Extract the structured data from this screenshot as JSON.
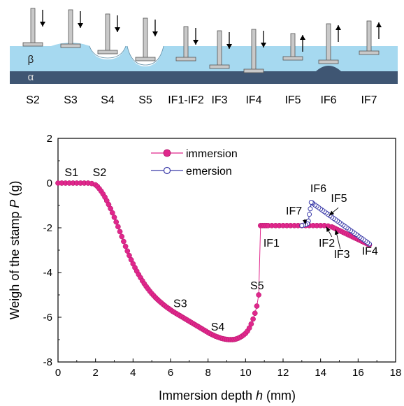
{
  "schematic": {
    "panel_labels": [
      "S2",
      "S3",
      "S4",
      "S5",
      "IF1-IF2",
      "IF3",
      "IF4",
      "IF5",
      "IF6",
      "IF7"
    ],
    "layer_labels": {
      "top": "β",
      "bottom": "α"
    },
    "arrow_directions": [
      "down",
      "down",
      "down",
      "down",
      "down",
      "down",
      "down",
      "up",
      "up",
      "up"
    ],
    "colors": {
      "beta_layer": "#a6d9f0",
      "alpha_layer": "#3f5673",
      "stamp": "#c9c9c9"
    }
  },
  "chart_data": {
    "type": "scatter",
    "xlabel_main": "Immersion depth ",
    "xlabel_var": "h",
    "xlabel_unit": " (mm)",
    "ylabel_main": "Weigh of the stamp ",
    "ylabel_var": "P",
    "ylabel_unit": " (g)",
    "xlim": [
      0,
      18
    ],
    "ylim": [
      -8,
      2
    ],
    "xticks": [
      0,
      2,
      4,
      6,
      8,
      10,
      12,
      14,
      16,
      18
    ],
    "yticks": [
      -8,
      -6,
      -4,
      -2,
      0,
      2
    ],
    "grid": false,
    "legend_position": "top-center",
    "series": [
      {
        "name": "immersion",
        "marker": "filled-circle",
        "color": "#e0278c",
        "x": [
          0.0,
          0.2,
          0.4,
          0.6,
          0.8,
          1.0,
          1.2,
          1.4,
          1.6,
          1.8,
          2.0,
          2.1,
          2.2,
          2.3,
          2.4,
          2.5,
          2.6,
          2.7,
          2.8,
          2.9,
          3.0,
          3.1,
          3.2,
          3.3,
          3.4,
          3.5,
          3.6,
          3.7,
          3.8,
          3.9,
          4.0,
          4.1,
          4.2,
          4.3,
          4.4,
          4.5,
          4.6,
          4.7,
          4.8,
          4.9,
          5.0,
          5.1,
          5.2,
          5.3,
          5.4,
          5.5,
          5.6,
          5.7,
          5.8,
          5.9,
          6.0,
          6.1,
          6.2,
          6.3,
          6.4,
          6.5,
          6.6,
          6.7,
          6.8,
          6.9,
          7.0,
          7.1,
          7.2,
          7.3,
          7.4,
          7.5,
          7.6,
          7.7,
          7.8,
          7.9,
          8.0,
          8.1,
          8.2,
          8.3,
          8.4,
          8.5,
          8.6,
          8.7,
          8.8,
          8.9,
          9.0,
          9.1,
          9.2,
          9.3,
          9.4,
          9.5,
          9.6,
          9.7,
          9.8,
          9.9,
          10.0,
          10.1,
          10.2,
          10.3,
          10.4,
          10.5,
          10.6,
          10.7,
          10.8,
          10.9,
          11.0,
          11.1,
          11.2,
          11.4,
          11.6,
          11.8,
          12.0,
          12.2,
          12.4,
          12.6,
          12.8,
          13.0,
          13.2,
          13.4,
          13.6,
          13.8,
          14.0,
          14.2,
          14.4,
          14.6,
          14.7,
          14.8,
          14.9,
          15.0,
          15.1,
          15.2,
          15.3,
          15.4,
          15.5,
          15.6,
          15.7,
          15.8,
          15.9,
          16.0,
          16.1,
          16.2,
          16.3,
          16.4,
          16.5,
          16.6
        ],
        "y": [
          0.0,
          0.0,
          0.0,
          0.0,
          0.0,
          0.0,
          0.0,
          0.0,
          0.0,
          -0.02,
          -0.08,
          -0.15,
          -0.25,
          -0.36,
          -0.49,
          -0.63,
          -0.79,
          -0.96,
          -1.14,
          -1.33,
          -1.53,
          -1.74,
          -1.95,
          -2.17,
          -2.39,
          -2.61,
          -2.83,
          -3.04,
          -3.24,
          -3.43,
          -3.61,
          -3.78,
          -3.94,
          -4.09,
          -4.23,
          -4.37,
          -4.5,
          -4.62,
          -4.73,
          -4.84,
          -4.94,
          -5.03,
          -5.12,
          -5.2,
          -5.28,
          -5.35,
          -5.42,
          -5.49,
          -5.55,
          -5.61,
          -5.67,
          -5.73,
          -5.78,
          -5.83,
          -5.88,
          -5.93,
          -5.98,
          -6.03,
          -6.08,
          -6.13,
          -6.18,
          -6.23,
          -6.28,
          -6.33,
          -6.38,
          -6.43,
          -6.48,
          -6.53,
          -6.58,
          -6.63,
          -6.68,
          -6.73,
          -6.77,
          -6.81,
          -6.85,
          -6.88,
          -6.91,
          -6.94,
          -6.96,
          -6.98,
          -6.99,
          -7.0,
          -7.0,
          -7.0,
          -6.99,
          -6.97,
          -6.94,
          -6.9,
          -6.85,
          -6.79,
          -6.72,
          -6.62,
          -6.48,
          -6.3,
          -6.08,
          -5.82,
          -5.5,
          -5.0,
          -1.9,
          -1.9,
          -1.9,
          -1.9,
          -1.9,
          -1.9,
          -1.9,
          -1.9,
          -1.9,
          -1.9,
          -1.9,
          -1.9,
          -1.9,
          -1.9,
          -1.9,
          -1.9,
          -1.9,
          -1.9,
          -1.9,
          -1.9,
          -1.92,
          -1.96,
          -2.0,
          -2.04,
          -2.08,
          -2.12,
          -2.16,
          -2.2,
          -2.24,
          -2.28,
          -2.32,
          -2.36,
          -2.4,
          -2.44,
          -2.48,
          -2.52,
          -2.56,
          -2.6,
          -2.64,
          -2.68,
          -2.72,
          -2.76
        ]
      },
      {
        "name": "emersion",
        "marker": "open-circle",
        "color": "#3a3aa8",
        "x": [
          16.6,
          16.5,
          16.4,
          16.3,
          16.2,
          16.1,
          16.0,
          15.9,
          15.8,
          15.7,
          15.6,
          15.5,
          15.4,
          15.3,
          15.2,
          15.1,
          15.0,
          14.9,
          14.8,
          14.7,
          14.6,
          14.5,
          14.4,
          14.3,
          14.2,
          14.1,
          14.0,
          13.9,
          13.8,
          13.7,
          13.6,
          13.55,
          13.5,
          13.45,
          13.4,
          13.35,
          13.3,
          13.2,
          13.1,
          13.0
        ],
        "y": [
          -2.72,
          -2.66,
          -2.6,
          -2.54,
          -2.48,
          -2.42,
          -2.36,
          -2.3,
          -2.24,
          -2.18,
          -2.12,
          -2.06,
          -2.0,
          -1.94,
          -1.88,
          -1.82,
          -1.76,
          -1.7,
          -1.64,
          -1.58,
          -1.52,
          -1.46,
          -1.4,
          -1.34,
          -1.28,
          -1.22,
          -1.16,
          -1.1,
          -1.04,
          -0.98,
          -0.92,
          -0.88,
          -0.86,
          -1.15,
          -1.4,
          -1.7,
          -1.82,
          -1.86,
          -1.88,
          -1.9
        ]
      }
    ],
    "annotations": [
      {
        "text": "S1",
        "x": 0.35,
        "y": 0.32
      },
      {
        "text": "S2",
        "x": 1.85,
        "y": 0.32
      },
      {
        "text": "S3",
        "x": 6.15,
        "y": -5.55
      },
      {
        "text": "S4",
        "x": 8.15,
        "y": -6.6
      },
      {
        "text": "S5",
        "x": 10.25,
        "y": -4.75
      },
      {
        "text": "IF1",
        "x": 10.95,
        "y": -2.85
      },
      {
        "text": "IF2",
        "x": 13.9,
        "y": -2.85
      },
      {
        "text": "IF3",
        "x": 14.7,
        "y": -3.35
      },
      {
        "text": "IF4",
        "x": 16.2,
        "y": -3.2
      },
      {
        "text": "IF5",
        "x": 14.55,
        "y": -0.85
      },
      {
        "text": "IF6",
        "x": 13.45,
        "y": -0.4
      },
      {
        "text": "IF7",
        "x": 12.15,
        "y": -1.4
      }
    ]
  }
}
